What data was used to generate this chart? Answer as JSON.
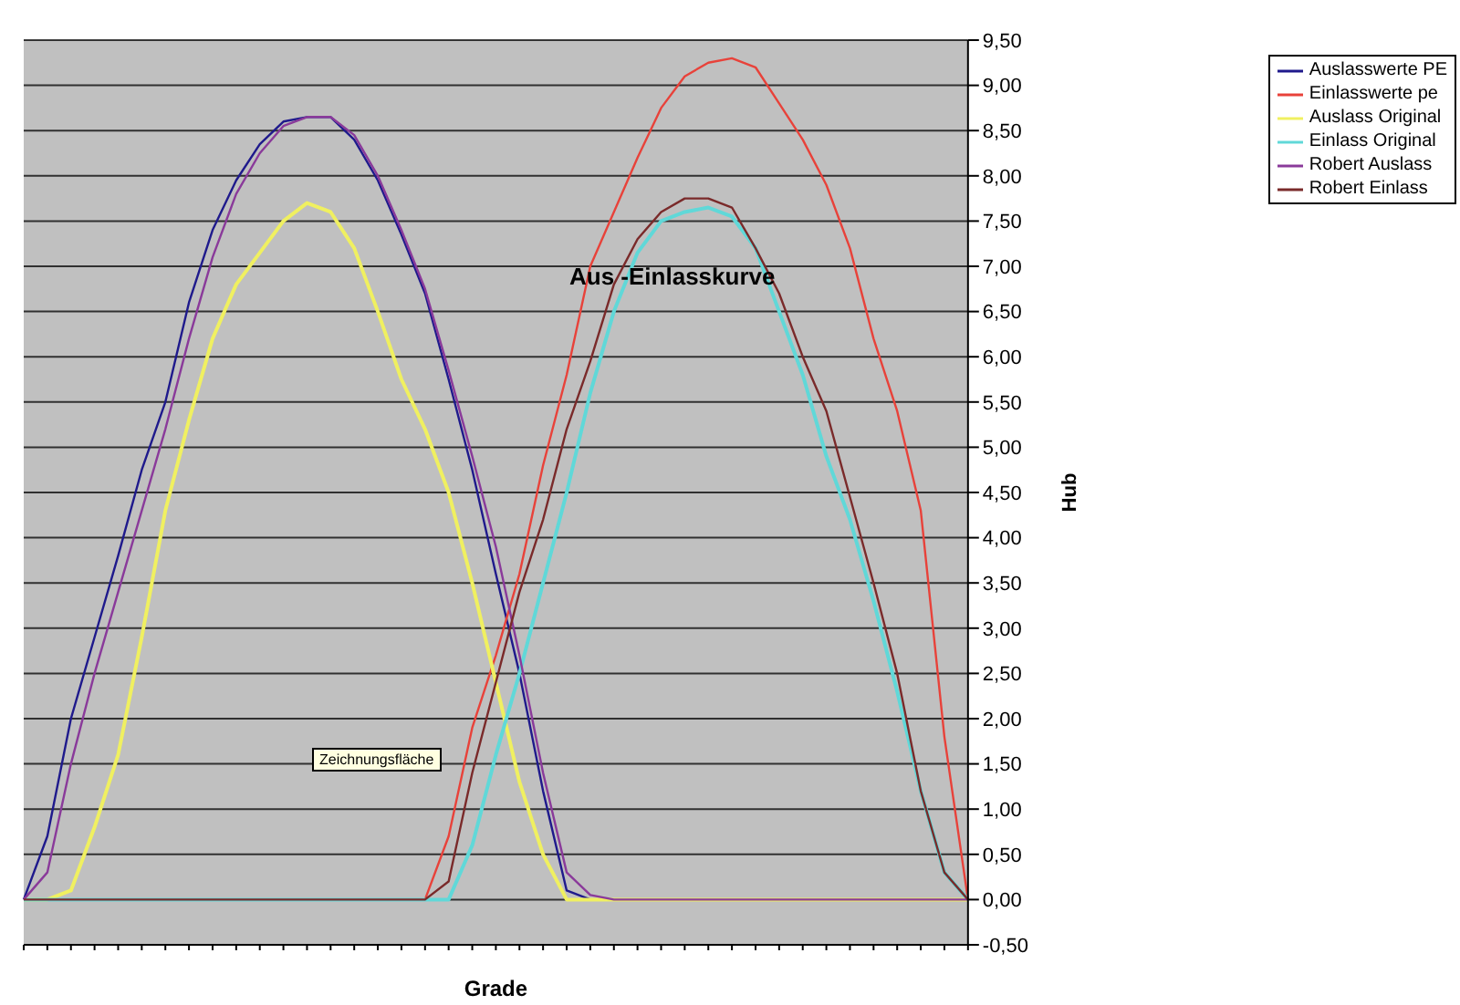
{
  "chart_data": {
    "type": "line",
    "title": "Aus -Einlasskurve",
    "xlabel": "Grade",
    "ylabel": "Hub",
    "categories": [
      null,
      null,
      null,
      null,
      null,
      null,
      null,
      null,
      null,
      null,
      null,
      null,
      null,
      null,
      null,
      null,
      null,
      null,
      null,
      null,
      null,
      null,
      null,
      null,
      null,
      null,
      null,
      null,
      null,
      null,
      null,
      null,
      null,
      null,
      null,
      null,
      null,
      null,
      null,
      null,
      null
    ],
    "series": [
      {
        "name": "Auslasswerte PE",
        "color": "#1f1a8c",
        "values": [
          0,
          0.7,
          2.0,
          2.9,
          3.8,
          4.75,
          5.5,
          6.6,
          7.4,
          7.95,
          8.35,
          8.6,
          8.65,
          8.65,
          8.4,
          7.95,
          7.35,
          6.7,
          5.75,
          4.75,
          3.6,
          2.5,
          1.2,
          0.1,
          0,
          null,
          null,
          null,
          null,
          null,
          null,
          null,
          null,
          null,
          null,
          null,
          null,
          null,
          null,
          null,
          null
        ]
      },
      {
        "name": "Einlasswerte pe",
        "color": "#e8423a",
        "values": [
          null,
          null,
          null,
          null,
          null,
          null,
          null,
          null,
          null,
          null,
          null,
          null,
          null,
          null,
          null,
          null,
          null,
          0,
          0.7,
          1.9,
          2.7,
          3.6,
          4.8,
          5.8,
          7.0,
          7.6,
          8.2,
          8.75,
          9.1,
          9.25,
          9.3,
          9.2,
          8.8,
          8.4,
          7.9,
          7.2,
          6.2,
          5.4,
          4.3,
          1.8,
          0
        ]
      },
      {
        "name": "Auslass Original",
        "color": "#f0f060",
        "values": [
          0,
          0,
          0.1,
          0.8,
          1.6,
          2.9,
          4.3,
          5.3,
          6.2,
          6.8,
          7.15,
          7.5,
          7.7,
          7.6,
          7.2,
          6.5,
          5.75,
          5.2,
          4.5,
          3.5,
          2.4,
          1.3,
          0.5,
          0,
          0,
          0,
          0,
          0,
          0,
          0,
          0,
          0,
          0,
          0,
          0,
          0,
          0,
          0,
          0,
          0,
          0
        ]
      },
      {
        "name": "Einlass Original",
        "color": "#60d8d8",
        "values": [
          0,
          0,
          0,
          0,
          0,
          0,
          0,
          0,
          0,
          0,
          0,
          0,
          0,
          0,
          0,
          0,
          0,
          0,
          0,
          0.6,
          1.6,
          2.5,
          3.5,
          4.5,
          5.6,
          6.5,
          7.15,
          7.5,
          7.6,
          7.65,
          7.55,
          7.2,
          6.5,
          5.8,
          4.9,
          4.2,
          3.3,
          2.3,
          1.2,
          0.3,
          0
        ]
      },
      {
        "name": "Robert Auslass",
        "color": "#8a3a9a",
        "values": [
          0,
          0.3,
          1.5,
          2.5,
          3.4,
          4.3,
          5.2,
          6.2,
          7.1,
          7.8,
          8.25,
          8.55,
          8.65,
          8.65,
          8.45,
          8.0,
          7.4,
          6.75,
          5.85,
          4.9,
          3.9,
          2.7,
          1.4,
          0.3,
          0.05,
          0,
          0,
          0,
          0,
          0,
          0,
          0,
          0,
          0,
          0,
          0,
          0,
          0,
          0,
          0,
          0
        ]
      },
      {
        "name": "Robert Einlass",
        "color": "#7a2a2a",
        "values": [
          0,
          0,
          0,
          0,
          0,
          0,
          0,
          0,
          0,
          0,
          0,
          0,
          0,
          0,
          0,
          0,
          0,
          0,
          0.2,
          1.4,
          2.4,
          3.4,
          4.2,
          5.2,
          5.95,
          6.8,
          7.3,
          7.6,
          7.75,
          7.75,
          7.65,
          7.2,
          6.7,
          6.0,
          5.4,
          4.45,
          3.5,
          2.5,
          1.2,
          0.3,
          0
        ]
      }
    ],
    "ylim": [
      -0.5,
      9.5
    ],
    "yticks": [
      {
        "value": -0.5,
        "label": "-0,50"
      },
      {
        "value": 0,
        "label": "0,00"
      },
      {
        "value": 0.5,
        "label": "0,50"
      },
      {
        "value": 1,
        "label": "1,00"
      },
      {
        "value": 1.5,
        "label": "1,50"
      },
      {
        "value": 2,
        "label": "2,00"
      },
      {
        "value": 2.5,
        "label": "2,50"
      },
      {
        "value": 3,
        "label": "3,00"
      },
      {
        "value": 3.5,
        "label": "3,50"
      },
      {
        "value": 4,
        "label": "4,00"
      },
      {
        "value": 4.5,
        "label": "4,50"
      },
      {
        "value": 5,
        "label": "5,00"
      },
      {
        "value": 5.5,
        "label": "5,50"
      },
      {
        "value": 6,
        "label": "6,00"
      },
      {
        "value": 6.5,
        "label": "6,50"
      },
      {
        "value": 7,
        "label": "7,00"
      },
      {
        "value": 7.5,
        "label": "7,50"
      },
      {
        "value": 8,
        "label": "8,00"
      },
      {
        "value": 8.5,
        "label": "8,50"
      },
      {
        "value": 9,
        "label": "9,00"
      },
      {
        "value": 9.5,
        "label": "9,50"
      }
    ],
    "grid": "y",
    "legend": "top right",
    "marker": "none",
    "line_style": "solid",
    "annotations": [
      "Zeichnungsfläche"
    ]
  }
}
